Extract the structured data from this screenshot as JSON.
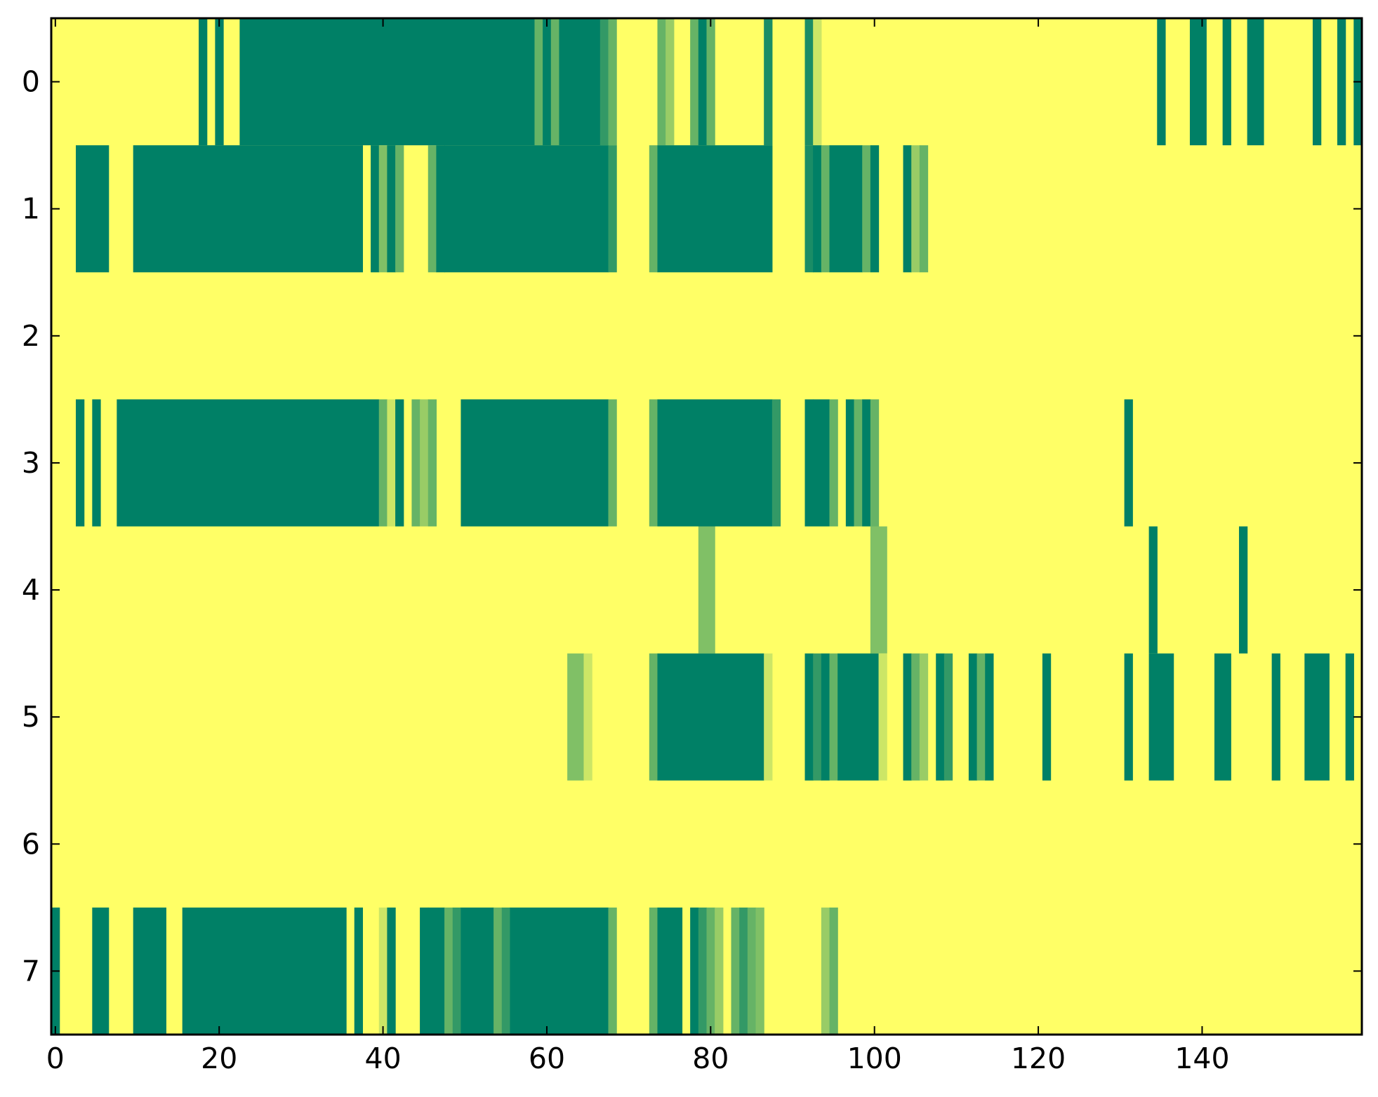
{
  "chart_data": {
    "type": "heatmap",
    "title": "",
    "xlabel": "",
    "ylabel": "",
    "x_range": [
      -0.5,
      159.5
    ],
    "y_range": [
      -0.5,
      7.5
    ],
    "y_inverted": true,
    "x_ticks": [
      0,
      20,
      40,
      60,
      80,
      100,
      120,
      140
    ],
    "x_tick_labels": [
      "0",
      "20",
      "40",
      "60",
      "80",
      "100",
      "120",
      "140"
    ],
    "y_ticks": [
      0,
      1,
      2,
      3,
      4,
      5,
      6,
      7
    ],
    "y_tick_labels": [
      "0",
      "1",
      "2",
      "3",
      "4",
      "5",
      "6",
      "7"
    ],
    "grid": false,
    "legend": "none",
    "colormap": "summer_r",
    "value_range": [
      0,
      1
    ],
    "colors": {
      "low": "#ffff66",
      "high": "#008066",
      "background": "#ffff66",
      "axes": "#000000"
    },
    "rows": [
      {
        "row": 0,
        "segments": [
          {
            "start": 18,
            "end": 18,
            "value": 1.0
          },
          {
            "start": 20,
            "end": 20,
            "value": 1.0
          },
          {
            "start": 23,
            "end": 58,
            "value": 1.0
          },
          {
            "start": 59,
            "end": 59,
            "value": 0.6
          },
          {
            "start": 60,
            "end": 60,
            "value": 1.0
          },
          {
            "start": 61,
            "end": 61,
            "value": 0.6
          },
          {
            "start": 62,
            "end": 66,
            "value": 1.0
          },
          {
            "start": 67,
            "end": 67,
            "value": 0.8
          },
          {
            "start": 68,
            "end": 68,
            "value": 0.6
          },
          {
            "start": 74,
            "end": 74,
            "value": 0.6
          },
          {
            "start": 75,
            "end": 75,
            "value": 0.4
          },
          {
            "start": 78,
            "end": 78,
            "value": 0.6
          },
          {
            "start": 79,
            "end": 79,
            "value": 1.0
          },
          {
            "start": 80,
            "end": 80,
            "value": 0.6
          },
          {
            "start": 87,
            "end": 87,
            "value": 0.9
          },
          {
            "start": 92,
            "end": 92,
            "value": 0.9
          },
          {
            "start": 93,
            "end": 93,
            "value": 0.2
          },
          {
            "start": 135,
            "end": 135,
            "value": 1.0
          },
          {
            "start": 139,
            "end": 140,
            "value": 1.0
          },
          {
            "start": 143,
            "end": 143,
            "value": 1.0
          },
          {
            "start": 146,
            "end": 147,
            "value": 1.0
          },
          {
            "start": 154,
            "end": 154,
            "value": 1.0
          },
          {
            "start": 157,
            "end": 157,
            "value": 1.0
          },
          {
            "start": 159,
            "end": 159,
            "value": 1.0
          }
        ]
      },
      {
        "row": 1,
        "segments": [
          {
            "start": 3,
            "end": 6,
            "value": 1.0
          },
          {
            "start": 10,
            "end": 37,
            "value": 1.0
          },
          {
            "start": 39,
            "end": 39,
            "value": 1.0
          },
          {
            "start": 40,
            "end": 40,
            "value": 0.5
          },
          {
            "start": 41,
            "end": 41,
            "value": 1.0
          },
          {
            "start": 42,
            "end": 42,
            "value": 0.6
          },
          {
            "start": 46,
            "end": 46,
            "value": 0.6
          },
          {
            "start": 47,
            "end": 47,
            "value": 1.0
          },
          {
            "start": 48,
            "end": 67,
            "value": 1.0
          },
          {
            "start": 68,
            "end": 68,
            "value": 0.8
          },
          {
            "start": 73,
            "end": 73,
            "value": 0.6
          },
          {
            "start": 74,
            "end": 87,
            "value": 1.0
          },
          {
            "start": 92,
            "end": 92,
            "value": 0.9
          },
          {
            "start": 93,
            "end": 93,
            "value": 1.0
          },
          {
            "start": 94,
            "end": 94,
            "value": 0.6
          },
          {
            "start": 95,
            "end": 98,
            "value": 1.0
          },
          {
            "start": 99,
            "end": 99,
            "value": 0.6
          },
          {
            "start": 100,
            "end": 100,
            "value": 1.0
          },
          {
            "start": 104,
            "end": 104,
            "value": 1.0
          },
          {
            "start": 105,
            "end": 105,
            "value": 0.4
          },
          {
            "start": 106,
            "end": 106,
            "value": 0.6
          }
        ]
      },
      {
        "row": 2,
        "segments": []
      },
      {
        "row": 3,
        "segments": [
          {
            "start": 3,
            "end": 3,
            "value": 1.0
          },
          {
            "start": 5,
            "end": 5,
            "value": 1.0
          },
          {
            "start": 8,
            "end": 39,
            "value": 1.0
          },
          {
            "start": 40,
            "end": 40,
            "value": 0.6
          },
          {
            "start": 41,
            "end": 41,
            "value": 0.2
          },
          {
            "start": 42,
            "end": 42,
            "value": 1.0
          },
          {
            "start": 44,
            "end": 44,
            "value": 0.6
          },
          {
            "start": 45,
            "end": 45,
            "value": 0.4
          },
          {
            "start": 46,
            "end": 46,
            "value": 0.6
          },
          {
            "start": 50,
            "end": 67,
            "value": 1.0
          },
          {
            "start": 68,
            "end": 68,
            "value": 0.6
          },
          {
            "start": 73,
            "end": 73,
            "value": 0.6
          },
          {
            "start": 74,
            "end": 87,
            "value": 1.0
          },
          {
            "start": 88,
            "end": 88,
            "value": 0.8
          },
          {
            "start": 92,
            "end": 92,
            "value": 1.0
          },
          {
            "start": 93,
            "end": 94,
            "value": 1.0
          },
          {
            "start": 95,
            "end": 95,
            "value": 0.6
          },
          {
            "start": 97,
            "end": 97,
            "value": 1.0
          },
          {
            "start": 98,
            "end": 98,
            "value": 0.6
          },
          {
            "start": 99,
            "end": 99,
            "value": 1.0
          },
          {
            "start": 100,
            "end": 100,
            "value": 0.6
          },
          {
            "start": 131,
            "end": 131,
            "value": 1.0
          }
        ]
      },
      {
        "row": 4,
        "segments": [
          {
            "start": 79,
            "end": 80,
            "value": 0.5
          },
          {
            "start": 100,
            "end": 101,
            "value": 0.5
          },
          {
            "start": 134,
            "end": 134,
            "value": 1.0
          },
          {
            "start": 145,
            "end": 145,
            "value": 1.0
          }
        ]
      },
      {
        "row": 5,
        "segments": [
          {
            "start": 63,
            "end": 64,
            "value": 0.5
          },
          {
            "start": 65,
            "end": 65,
            "value": 0.2
          },
          {
            "start": 73,
            "end": 73,
            "value": 0.6
          },
          {
            "start": 74,
            "end": 86,
            "value": 1.0
          },
          {
            "start": 87,
            "end": 87,
            "value": 0.2
          },
          {
            "start": 92,
            "end": 92,
            "value": 1.0
          },
          {
            "start": 93,
            "end": 93,
            "value": 0.8
          },
          {
            "start": 94,
            "end": 94,
            "value": 1.0
          },
          {
            "start": 95,
            "end": 95,
            "value": 0.6
          },
          {
            "start": 96,
            "end": 100,
            "value": 1.0
          },
          {
            "start": 101,
            "end": 101,
            "value": 0.2
          },
          {
            "start": 104,
            "end": 104,
            "value": 1.0
          },
          {
            "start": 105,
            "end": 105,
            "value": 0.6
          },
          {
            "start": 106,
            "end": 106,
            "value": 0.4
          },
          {
            "start": 108,
            "end": 108,
            "value": 1.0
          },
          {
            "start": 109,
            "end": 109,
            "value": 0.8
          },
          {
            "start": 112,
            "end": 112,
            "value": 1.0
          },
          {
            "start": 113,
            "end": 113,
            "value": 0.6
          },
          {
            "start": 114,
            "end": 114,
            "value": 1.0
          },
          {
            "start": 121,
            "end": 121,
            "value": 1.0
          },
          {
            "start": 131,
            "end": 131,
            "value": 1.0
          },
          {
            "start": 134,
            "end": 136,
            "value": 1.0
          },
          {
            "start": 142,
            "end": 143,
            "value": 1.0
          },
          {
            "start": 149,
            "end": 149,
            "value": 1.0
          },
          {
            "start": 153,
            "end": 155,
            "value": 1.0
          },
          {
            "start": 158,
            "end": 158,
            "value": 1.0
          }
        ]
      },
      {
        "row": 6,
        "segments": []
      },
      {
        "row": 7,
        "segments": [
          {
            "start": 0,
            "end": 0,
            "value": 1.0
          },
          {
            "start": 5,
            "end": 6,
            "value": 1.0
          },
          {
            "start": 10,
            "end": 13,
            "value": 1.0
          },
          {
            "start": 16,
            "end": 35,
            "value": 1.0
          },
          {
            "start": 37,
            "end": 37,
            "value": 1.0
          },
          {
            "start": 40,
            "end": 40,
            "value": 0.2
          },
          {
            "start": 41,
            "end": 41,
            "value": 1.0
          },
          {
            "start": 45,
            "end": 45,
            "value": 1.0
          },
          {
            "start": 46,
            "end": 47,
            "value": 1.0
          },
          {
            "start": 48,
            "end": 48,
            "value": 0.6
          },
          {
            "start": 49,
            "end": 49,
            "value": 0.8
          },
          {
            "start": 50,
            "end": 53,
            "value": 1.0
          },
          {
            "start": 54,
            "end": 54,
            "value": 0.6
          },
          {
            "start": 55,
            "end": 55,
            "value": 0.8
          },
          {
            "start": 56,
            "end": 67,
            "value": 1.0
          },
          {
            "start": 68,
            "end": 68,
            "value": 0.6
          },
          {
            "start": 73,
            "end": 73,
            "value": 0.6
          },
          {
            "start": 74,
            "end": 76,
            "value": 1.0
          },
          {
            "start": 78,
            "end": 78,
            "value": 1.0
          },
          {
            "start": 79,
            "end": 79,
            "value": 0.8
          },
          {
            "start": 80,
            "end": 80,
            "value": 0.6
          },
          {
            "start": 81,
            "end": 81,
            "value": 0.4
          },
          {
            "start": 83,
            "end": 83,
            "value": 0.6
          },
          {
            "start": 84,
            "end": 84,
            "value": 0.8
          },
          {
            "start": 85,
            "end": 85,
            "value": 0.6
          },
          {
            "start": 86,
            "end": 86,
            "value": 0.5
          },
          {
            "start": 94,
            "end": 94,
            "value": 0.4
          },
          {
            "start": 95,
            "end": 95,
            "value": 0.6
          }
        ]
      }
    ]
  }
}
